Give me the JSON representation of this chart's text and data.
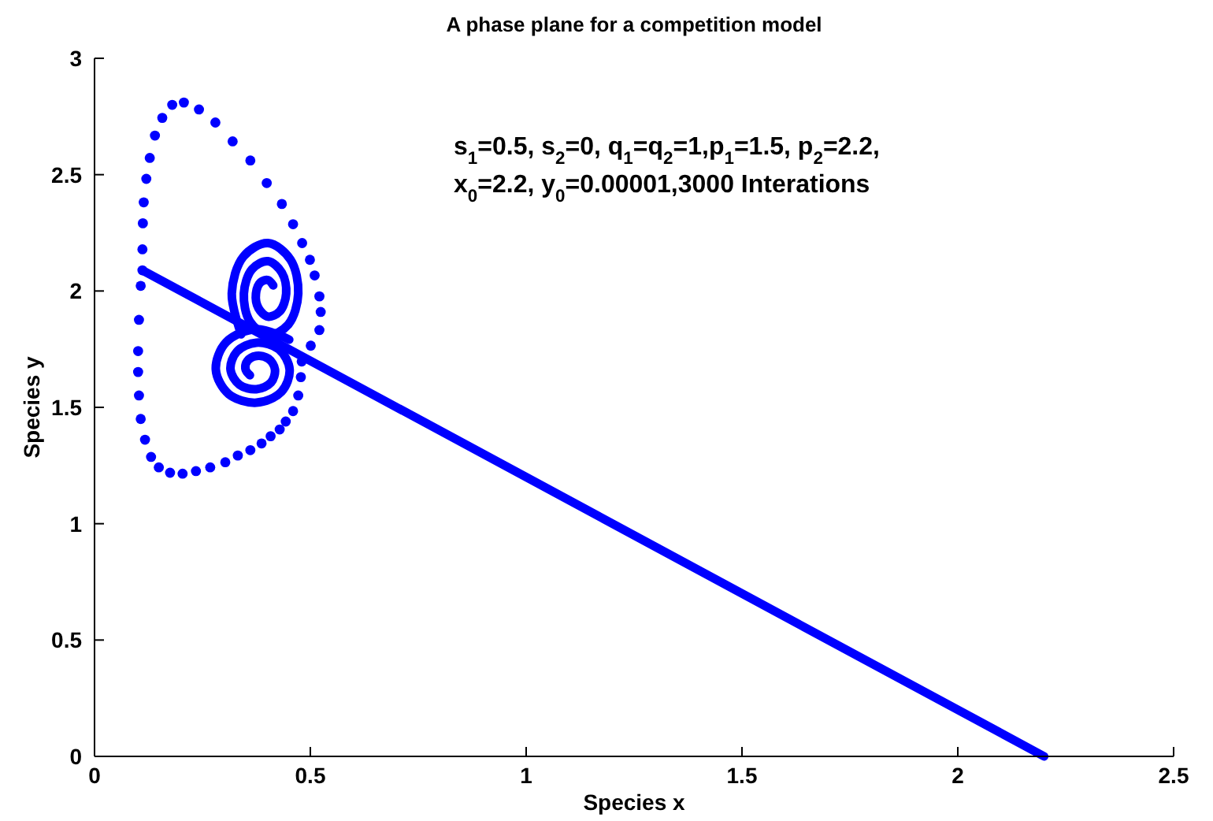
{
  "chart_data": {
    "type": "scatter",
    "title": "A phase plane for a competition model",
    "xlabel": "Species x",
    "ylabel": "Species y",
    "xlim": [
      0,
      2.5
    ],
    "ylim": [
      0,
      3
    ],
    "xticks": [
      0,
      0.5,
      1,
      1.5,
      2,
      2.5
    ],
    "yticks": [
      0,
      0.5,
      1,
      1.5,
      2,
      2.5,
      3
    ],
    "grid": false,
    "annotations": [
      "s$_{1}$=0.5, s$_{2}$=0, q$_{1}$=q$_{2}$=1,p$_{1}$=1.5, p$_{2}$=2.2,\nx$_{0}$=2.2, y$_{0}$=0.00001,3000 Interations"
    ],
    "series": [
      {
        "marker": "circle",
        "color": "#0000ff",
        "x": [
          0.111,
          0.111,
          0.112,
          0.114,
          0.12,
          0.128,
          0.14,
          0.157,
          0.18,
          0.207,
          0.242,
          0.28,
          0.32,
          0.361,
          0.399,
          0.434,
          0.46,
          0.481,
          0.499,
          0.51,
          0.521,
          0.524,
          0.521,
          0.501,
          0.107,
          0.103,
          0.101,
          0.101,
          0.103,
          0.107,
          0.117,
          0.131,
          0.149,
          0.175,
          0.204,
          0.235,
          0.268,
          0.303,
          0.332,
          0.361,
          0.387,
          0.408,
          0.429,
          0.443,
          0.46,
          0.472,
          0.478,
          0.48
        ],
        "values": [
          2.089,
          2.179,
          2.291,
          2.381,
          2.482,
          2.572,
          2.668,
          2.744,
          2.8,
          2.81,
          2.78,
          2.724,
          2.643,
          2.561,
          2.464,
          2.374,
          2.287,
          2.206,
          2.134,
          2.067,
          1.977,
          1.91,
          1.832,
          1.765,
          2.022,
          1.876,
          1.742,
          1.652,
          1.551,
          1.45,
          1.361,
          1.287,
          1.242,
          1.219,
          1.215,
          1.226,
          1.242,
          1.264,
          1.293,
          1.316,
          1.345,
          1.376,
          1.405,
          1.439,
          1.484,
          1.551,
          1.63,
          1.697
        ]
      },
      {
        "type": "line",
        "color": "#0000ff",
        "x": [
          0.111,
          2.2
        ],
        "values": [
          2.089,
          0
        ]
      },
      {
        "type": "line",
        "color": "#0000ff",
        "x": [
          0.34,
          0.318,
          0.345,
          0.402,
          0.454,
          0.472,
          0.449,
          0.402,
          0.36,
          0.346,
          0.365,
          0.402,
          0.434,
          0.444,
          0.429,
          0.402,
          0.38,
          0.374,
          0.385,
          0.402,
          0.414
        ],
        "values": [
          1.814,
          1.989,
          2.148,
          2.206,
          2.135,
          1.989,
          1.856,
          1.811,
          1.869,
          1.989,
          2.094,
          2.128,
          2.079,
          1.989,
          1.912,
          1.89,
          1.926,
          1.989,
          2.038,
          2.047,
          2.024
        ]
      },
      {
        "type": "line",
        "color": "#0000ff",
        "x": [
          0.451,
          0.375,
          0.305,
          0.281,
          0.311,
          0.375,
          0.433,
          0.452,
          0.427,
          0.375,
          0.33,
          0.315,
          0.336,
          0.375,
          0.409,
          0.418,
          0.403,
          0.375,
          0.354,
          0.35,
          0.36
        ],
        "values": [
          1.791,
          1.836,
          1.78,
          1.663,
          1.557,
          1.52,
          1.567,
          1.663,
          1.75,
          1.778,
          1.74,
          1.663,
          1.597,
          1.578,
          1.607,
          1.663,
          1.709,
          1.721,
          1.699,
          1.663,
          1.638
        ]
      }
    ]
  }
}
